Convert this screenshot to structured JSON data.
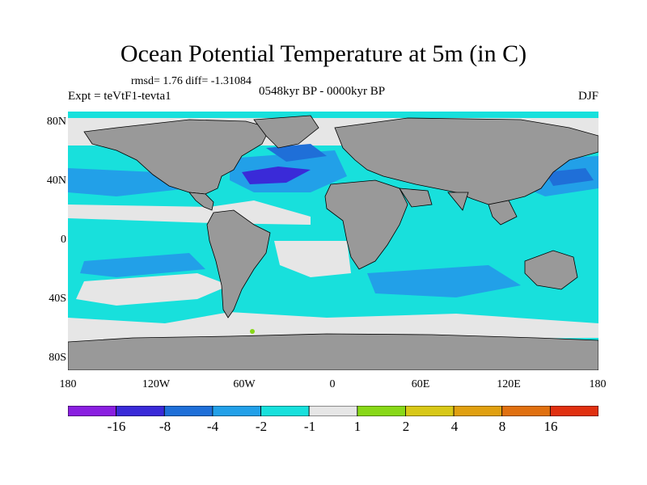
{
  "title": "Ocean Potential Temperature at 5m (in C)",
  "stats": "rmsd= 1.76 diff= -1.31084",
  "experiment": "Expt = teVtF1-tevta1",
  "period": "0548kyr BP - 0000kyr BP",
  "season": "DJF",
  "lat_labels": [
    "80N",
    "40N",
    "0",
    "40S",
    "80S"
  ],
  "lon_labels": [
    "180",
    "120W",
    "60W",
    "0",
    "60E",
    "120E",
    "180"
  ],
  "colorbar": {
    "labels": [
      "-16",
      "-8",
      "-4",
      "-2",
      "-1",
      "1",
      "2",
      "4",
      "8",
      "16"
    ],
    "colors": [
      "#8a1fe0",
      "#3a2ad8",
      "#1f6fd8",
      "#22a0e8",
      "#18e0dc",
      "#e6e6e6",
      "#88d818",
      "#d8c818",
      "#e0a010",
      "#e07010",
      "#e03010"
    ]
  },
  "colors": {
    "land": "#999999",
    "ocean_main": "#18e0dc",
    "ocean_light": "#e6e6e6",
    "ocean_mid": "#22a0e8",
    "ocean_deep": "#3a2ad8",
    "ocean_blue": "#1f6fd8"
  }
}
